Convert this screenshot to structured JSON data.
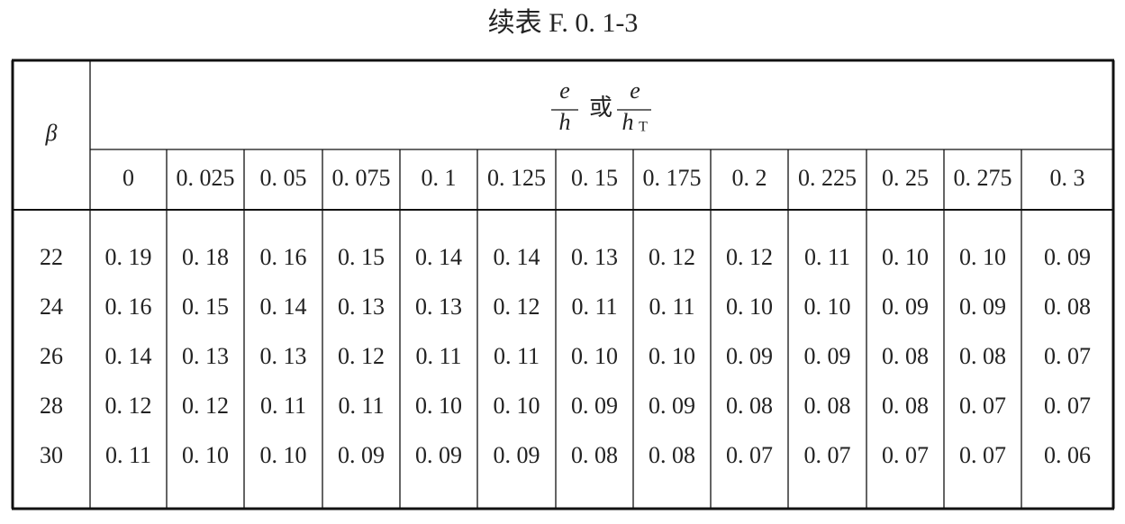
{
  "title": "续表 F. 0. 1-3",
  "table": {
    "row_header": "β",
    "group_header": {
      "num1": "e",
      "den1": "h",
      "connector": "或",
      "num2": "e",
      "den2": "h",
      "den2_sub": "T"
    },
    "columns": [
      "0",
      "0. 025",
      "0. 05",
      "0. 075",
      "0. 1",
      "0. 125",
      "0. 15",
      "0. 175",
      "0. 2",
      "0. 225",
      "0. 25",
      "0. 275",
      "0. 3"
    ],
    "rows": [
      {
        "beta": "22",
        "cells": [
          "0. 19",
          "0. 18",
          "0. 16",
          "0. 15",
          "0. 14",
          "0. 14",
          "0. 13",
          "0. 12",
          "0. 12",
          "0. 11",
          "0. 10",
          "0. 10",
          "0. 09"
        ]
      },
      {
        "beta": "24",
        "cells": [
          "0. 16",
          "0. 15",
          "0. 14",
          "0. 13",
          "0. 13",
          "0. 12",
          "0. 11",
          "0. 11",
          "0. 10",
          "0. 10",
          "0. 09",
          "0. 09",
          "0. 08"
        ]
      },
      {
        "beta": "26",
        "cells": [
          "0. 14",
          "0. 13",
          "0. 13",
          "0. 12",
          "0. 11",
          "0. 11",
          "0. 10",
          "0. 10",
          "0. 09",
          "0. 09",
          "0. 08",
          "0. 08",
          "0. 07"
        ]
      },
      {
        "beta": "28",
        "cells": [
          "0. 12",
          "0. 12",
          "0. 11",
          "0. 11",
          "0. 10",
          "0. 10",
          "0. 09",
          "0. 09",
          "0. 08",
          "0. 08",
          "0. 08",
          "0. 07",
          "0. 07"
        ]
      },
      {
        "beta": "30",
        "cells": [
          "0. 11",
          "0. 10",
          "0. 10",
          "0. 09",
          "0. 09",
          "0. 09",
          "0. 08",
          "0. 08",
          "0. 07",
          "0. 07",
          "0. 07",
          "0. 07",
          "0. 06"
        ]
      }
    ]
  }
}
